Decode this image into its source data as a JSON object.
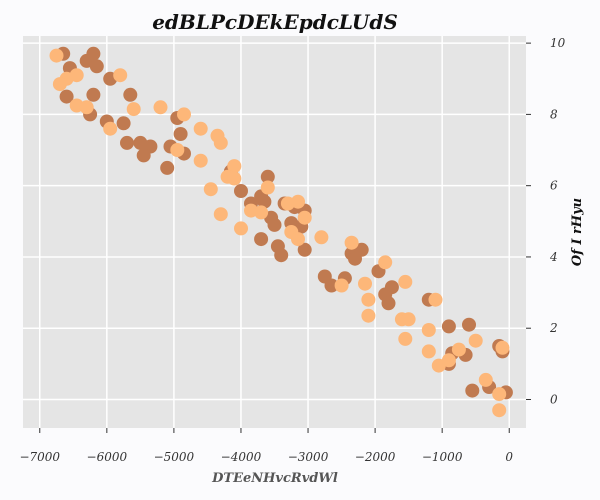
{
  "chart_data": {
    "type": "scatter",
    "title": "edBLPcDEkEpdcLUdS",
    "xlabel": "DTEeNHvcRvdWl",
    "ylabel": "Of I rHyu",
    "xlim": [
      -7250,
      250
    ],
    "ylim": [
      -0.8,
      10.2
    ],
    "xticks": [
      -7000,
      -6000,
      -5000,
      -4000,
      -3000,
      -2000,
      -1000,
      0
    ],
    "yticks": [
      0,
      2,
      4,
      6,
      8,
      10
    ],
    "grid": true,
    "legend": "none",
    "y_axis_position": "right",
    "colors": {
      "background": "#e5e5e5",
      "series_1": "#c07a50",
      "series_2": "#fdb779"
    },
    "series": [
      {
        "color": "#c07a50",
        "points": [
          [
            -6650,
            9.7
          ],
          [
            -6200,
            9.7
          ],
          [
            -6300,
            9.5
          ],
          [
            -6550,
            9.3
          ],
          [
            -6150,
            9.35
          ],
          [
            -6600,
            8.5
          ],
          [
            -6200,
            8.55
          ],
          [
            -5950,
            9.0
          ],
          [
            -5650,
            8.55
          ],
          [
            -6250,
            8.0
          ],
          [
            -6000,
            7.8
          ],
          [
            -5750,
            7.75
          ],
          [
            -5700,
            7.2
          ],
          [
            -5500,
            7.2
          ],
          [
            -5350,
            7.1
          ],
          [
            -5450,
            6.85
          ],
          [
            -5050,
            7.1
          ],
          [
            -4950,
            7.9
          ],
          [
            -4900,
            7.45
          ],
          [
            -4850,
            6.9
          ],
          [
            -5100,
            6.5
          ],
          [
            -4150,
            6.4
          ],
          [
            -4000,
            5.85
          ],
          [
            -3850,
            5.5
          ],
          [
            -3600,
            6.25
          ],
          [
            -3700,
            5.7
          ],
          [
            -3650,
            5.55
          ],
          [
            -3550,
            5.1
          ],
          [
            -3500,
            4.9
          ],
          [
            -3350,
            5.5
          ],
          [
            -3200,
            5.4
          ],
          [
            -3250,
            4.95
          ],
          [
            -3050,
            5.3
          ],
          [
            -3100,
            4.85
          ],
          [
            -3700,
            4.5
          ],
          [
            -3450,
            4.3
          ],
          [
            -3400,
            4.05
          ],
          [
            -3050,
            4.2
          ],
          [
            -2750,
            3.45
          ],
          [
            -2650,
            3.2
          ],
          [
            -2450,
            3.4
          ],
          [
            -2350,
            4.1
          ],
          [
            -2300,
            3.95
          ],
          [
            -2200,
            4.2
          ],
          [
            -1950,
            3.6
          ],
          [
            -1750,
            3.15
          ],
          [
            -1850,
            2.95
          ],
          [
            -1800,
            2.7
          ],
          [
            -1200,
            2.8
          ],
          [
            -900,
            2.05
          ],
          [
            -600,
            2.1
          ],
          [
            -850,
            1.3
          ],
          [
            -900,
            1.0
          ],
          [
            -650,
            1.25
          ],
          [
            -550,
            0.25
          ],
          [
            -300,
            0.35
          ],
          [
            -150,
            1.5
          ],
          [
            -100,
            1.35
          ],
          [
            -50,
            0.2
          ]
        ]
      },
      {
        "color": "#fdb779",
        "points": [
          [
            -6750,
            9.65
          ],
          [
            -6450,
            9.1
          ],
          [
            -6600,
            9.0
          ],
          [
            -6700,
            8.85
          ],
          [
            -5800,
            9.1
          ],
          [
            -6450,
            8.25
          ],
          [
            -6300,
            8.2
          ],
          [
            -5600,
            8.15
          ],
          [
            -5200,
            8.2
          ],
          [
            -4850,
            8.0
          ],
          [
            -5950,
            7.6
          ],
          [
            -4600,
            7.6
          ],
          [
            -4350,
            7.4
          ],
          [
            -4300,
            7.2
          ],
          [
            -4950,
            7.0
          ],
          [
            -4600,
            6.7
          ],
          [
            -4100,
            6.55
          ],
          [
            -4200,
            6.25
          ],
          [
            -4100,
            6.2
          ],
          [
            -3600,
            5.95
          ],
          [
            -4450,
            5.9
          ],
          [
            -3850,
            5.3
          ],
          [
            -3700,
            5.25
          ],
          [
            -4300,
            5.2
          ],
          [
            -4000,
            4.8
          ],
          [
            -3300,
            5.5
          ],
          [
            -3150,
            5.55
          ],
          [
            -3050,
            5.1
          ],
          [
            -3250,
            4.7
          ],
          [
            -3150,
            4.5
          ],
          [
            -2800,
            4.55
          ],
          [
            -2350,
            4.4
          ],
          [
            -1850,
            3.85
          ],
          [
            -2500,
            3.2
          ],
          [
            -2150,
            3.25
          ],
          [
            -1550,
            3.3
          ],
          [
            -2100,
            2.8
          ],
          [
            -2100,
            2.35
          ],
          [
            -1600,
            2.25
          ],
          [
            -1500,
            2.25
          ],
          [
            -1100,
            2.8
          ],
          [
            -1200,
            1.95
          ],
          [
            -1550,
            1.7
          ],
          [
            -1200,
            1.35
          ],
          [
            -1050,
            0.95
          ],
          [
            -900,
            1.1
          ],
          [
            -750,
            1.4
          ],
          [
            -500,
            1.65
          ],
          [
            -350,
            0.55
          ],
          [
            -150,
            0.15
          ],
          [
            -150,
            -0.3
          ],
          [
            -100,
            1.45
          ]
        ]
      }
    ]
  }
}
